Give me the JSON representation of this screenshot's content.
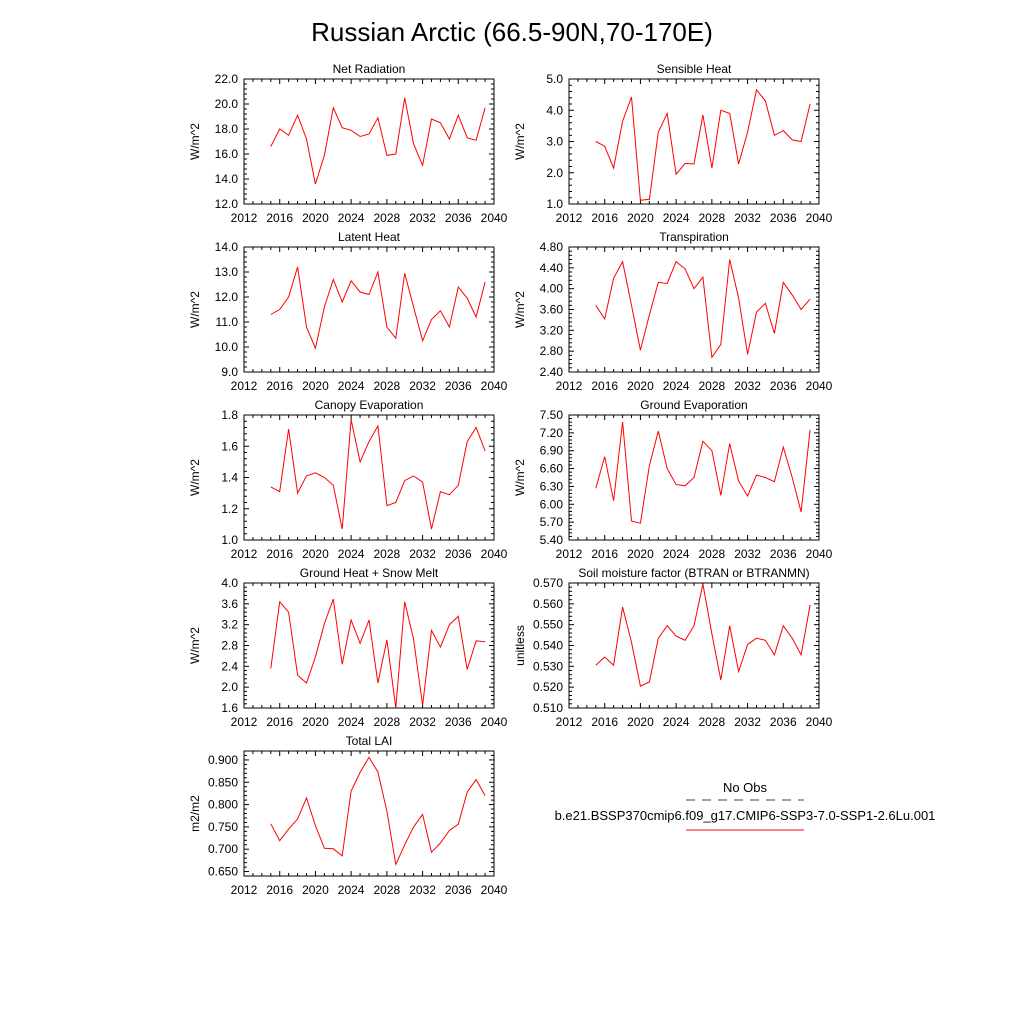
{
  "title": "Russian Arctic (66.5-90N,70-170E)",
  "legend": {
    "obs_label": "No Obs",
    "case_label": "b.e21.BSSP370cmip6.f09_g17.CMIP6-SSP3-7.0-SSP1-2.6Lu.001",
    "obs_color": "#3c3c96",
    "case_color": "#ff0000"
  },
  "years": [
    2015,
    2016,
    2017,
    2018,
    2019,
    2020,
    2021,
    2022,
    2023,
    2024,
    2025,
    2026,
    2027,
    2028,
    2029,
    2030,
    2031,
    2032,
    2033,
    2034,
    2035,
    2036,
    2037,
    2038,
    2039
  ],
  "chart_data": [
    {
      "type": "line",
      "title": "Net Radiation",
      "ylabel": "W/m^2",
      "xlim": [
        2012,
        2040
      ],
      "xticks": [
        "2012",
        "2016",
        "2020",
        "2024",
        "2028",
        "2032",
        "2036",
        "2040"
      ],
      "ylim": [
        12.0,
        22.0
      ],
      "yticks": [
        "12.0",
        "14.0",
        "16.0",
        "18.0",
        "20.0",
        "22.0"
      ],
      "series": [
        {
          "values": [
            16.6,
            18.0,
            17.5,
            19.1,
            17.2,
            13.6,
            15.9,
            19.7,
            18.1,
            17.9,
            17.4,
            17.6,
            18.9,
            15.9,
            16.0,
            20.5,
            16.8,
            15.1,
            18.8,
            18.5,
            17.2,
            19.1,
            17.3,
            17.1,
            19.7
          ]
        }
      ]
    },
    {
      "type": "line",
      "title": "Sensible Heat",
      "ylabel": "W/m^2",
      "xlim": [
        2012,
        2040
      ],
      "xticks": [
        "2012",
        "2016",
        "2020",
        "2024",
        "2028",
        "2032",
        "2036",
        "2040"
      ],
      "ylim": [
        1.0,
        5.0
      ],
      "yticks": [
        "1.0",
        "2.0",
        "3.0",
        "4.0",
        "5.0"
      ],
      "series": [
        {
          "values": [
            3.0,
            2.85,
            2.15,
            3.65,
            4.42,
            1.12,
            1.15,
            3.3,
            3.9,
            1.95,
            2.3,
            2.28,
            3.85,
            2.15,
            4.0,
            3.9,
            2.28,
            3.3,
            4.65,
            4.3,
            3.2,
            3.35,
            3.05,
            3.0,
            4.2
          ]
        }
      ]
    },
    {
      "type": "line",
      "title": "Latent Heat",
      "ylabel": "W/m^2",
      "xlim": [
        2012,
        2040
      ],
      "xticks": [
        "2012",
        "2016",
        "2020",
        "2024",
        "2028",
        "2032",
        "2036",
        "2040"
      ],
      "ylim": [
        9.0,
        14.0
      ],
      "yticks": [
        "9.0",
        "10.0",
        "11.0",
        "12.0",
        "13.0",
        "14.0"
      ],
      "series": [
        {
          "values": [
            11.3,
            11.5,
            12.0,
            13.2,
            10.8,
            9.95,
            11.6,
            12.7,
            11.8,
            12.65,
            12.2,
            12.1,
            13.0,
            10.8,
            10.35,
            12.95,
            11.6,
            10.25,
            11.1,
            11.45,
            10.8,
            12.4,
            11.95,
            11.2,
            12.6
          ]
        }
      ]
    },
    {
      "type": "line",
      "title": "Transpiration",
      "ylabel": "W/m^2",
      "xlim": [
        2012,
        2040
      ],
      "xticks": [
        "2012",
        "2016",
        "2020",
        "2024",
        "2028",
        "2032",
        "2036",
        "2040"
      ],
      "ylim": [
        2.4,
        4.8
      ],
      "yticks": [
        "2.40",
        "2.80",
        "3.20",
        "3.60",
        "4.00",
        "4.40",
        "4.80"
      ],
      "series": [
        {
          "values": [
            3.68,
            3.42,
            4.2,
            4.52,
            3.68,
            2.82,
            3.5,
            4.12,
            4.1,
            4.52,
            4.38,
            4.0,
            4.22,
            2.68,
            2.93,
            4.56,
            3.82,
            2.74,
            3.55,
            3.72,
            3.14,
            4.12,
            3.88,
            3.6,
            3.8
          ]
        }
      ]
    },
    {
      "type": "line",
      "title": "Canopy Evaporation",
      "ylabel": "W/m^2",
      "xlim": [
        2012,
        2040
      ],
      "xticks": [
        "2012",
        "2016",
        "2020",
        "2024",
        "2028",
        "2032",
        "2036",
        "2040"
      ],
      "ylim": [
        1.0,
        1.8
      ],
      "yticks": [
        "1.0",
        "1.2",
        "1.4",
        "1.6",
        "1.8"
      ],
      "series": [
        {
          "values": [
            1.34,
            1.31,
            1.71,
            1.3,
            1.41,
            1.43,
            1.4,
            1.35,
            1.07,
            1.77,
            1.5,
            1.63,
            1.73,
            1.22,
            1.24,
            1.38,
            1.41,
            1.37,
            1.07,
            1.31,
            1.29,
            1.35,
            1.63,
            1.72,
            1.57
          ]
        }
      ]
    },
    {
      "type": "line",
      "title": "Ground Evaporation",
      "ylabel": "W/m^2",
      "xlim": [
        2012,
        2040
      ],
      "xticks": [
        "2012",
        "2016",
        "2020",
        "2024",
        "2028",
        "2032",
        "2036",
        "2040"
      ],
      "ylim": [
        5.4,
        7.5
      ],
      "yticks": [
        "5.40",
        "5.70",
        "6.00",
        "6.30",
        "6.60",
        "6.90",
        "7.20",
        "7.50"
      ],
      "series": [
        {
          "values": [
            6.27,
            6.8,
            6.06,
            7.38,
            5.72,
            5.68,
            6.65,
            7.23,
            6.6,
            6.33,
            6.31,
            6.45,
            7.06,
            6.9,
            6.15,
            7.02,
            6.39,
            6.14,
            6.49,
            6.45,
            6.38,
            6.96,
            6.45,
            5.87,
            7.25
          ]
        }
      ]
    },
    {
      "type": "line",
      "title": "Ground Heat + Snow Melt",
      "ylabel": "W/m^2",
      "xlim": [
        2012,
        2040
      ],
      "xticks": [
        "2012",
        "2016",
        "2020",
        "2024",
        "2028",
        "2032",
        "2036",
        "2040"
      ],
      "ylim": [
        1.6,
        4.0
      ],
      "yticks": [
        "1.6",
        "2.0",
        "2.4",
        "2.8",
        "3.2",
        "3.6",
        "4.0"
      ],
      "series": [
        {
          "values": [
            2.36,
            3.64,
            3.44,
            2.23,
            2.08,
            2.58,
            3.22,
            3.69,
            2.44,
            3.29,
            2.84,
            3.29,
            2.08,
            2.91,
            1.6,
            3.64,
            2.92,
            1.65,
            3.09,
            2.77,
            3.2,
            3.36,
            2.34,
            2.89,
            2.87
          ]
        }
      ]
    },
    {
      "type": "line",
      "title": "Soil moisture factor (BTRAN or BTRANMN)",
      "ylabel": "unitless",
      "xlim": [
        2012,
        2040
      ],
      "xticks": [
        "2012",
        "2016",
        "2020",
        "2024",
        "2028",
        "2032",
        "2036",
        "2040"
      ],
      "ylim": [
        0.51,
        0.57
      ],
      "yticks": [
        "0.510",
        "0.520",
        "0.530",
        "0.540",
        "0.550",
        "0.560",
        "0.570"
      ],
      "series": [
        {
          "values": [
            0.5305,
            0.5345,
            0.5305,
            0.5585,
            0.5415,
            0.5205,
            0.5225,
            0.5435,
            0.5495,
            0.5445,
            0.5425,
            0.5495,
            0.5695,
            0.5455,
            0.5235,
            0.5495,
            0.5275,
            0.5405,
            0.5435,
            0.5425,
            0.5355,
            0.5495,
            0.5435,
            0.5355,
            0.5595
          ]
        }
      ]
    },
    {
      "type": "line",
      "title": "Total LAI",
      "ylabel": "m2/m2",
      "xlim": [
        2012,
        2040
      ],
      "xticks": [
        "2012",
        "2016",
        "2020",
        "2024",
        "2028",
        "2032",
        "2036",
        "2040"
      ],
      "ylim": [
        0.64,
        0.92
      ],
      "yticks": [
        "0.650",
        "0.700",
        "0.750",
        "0.800",
        "0.850",
        "0.900"
      ],
      "series": [
        {
          "values": [
            0.757,
            0.719,
            0.745,
            0.768,
            0.815,
            0.753,
            0.702,
            0.701,
            0.685,
            0.83,
            0.872,
            0.906,
            0.873,
            0.785,
            0.666,
            0.71,
            0.75,
            0.778,
            0.693,
            0.714,
            0.742,
            0.756,
            0.828,
            0.856,
            0.82
          ]
        }
      ]
    }
  ]
}
